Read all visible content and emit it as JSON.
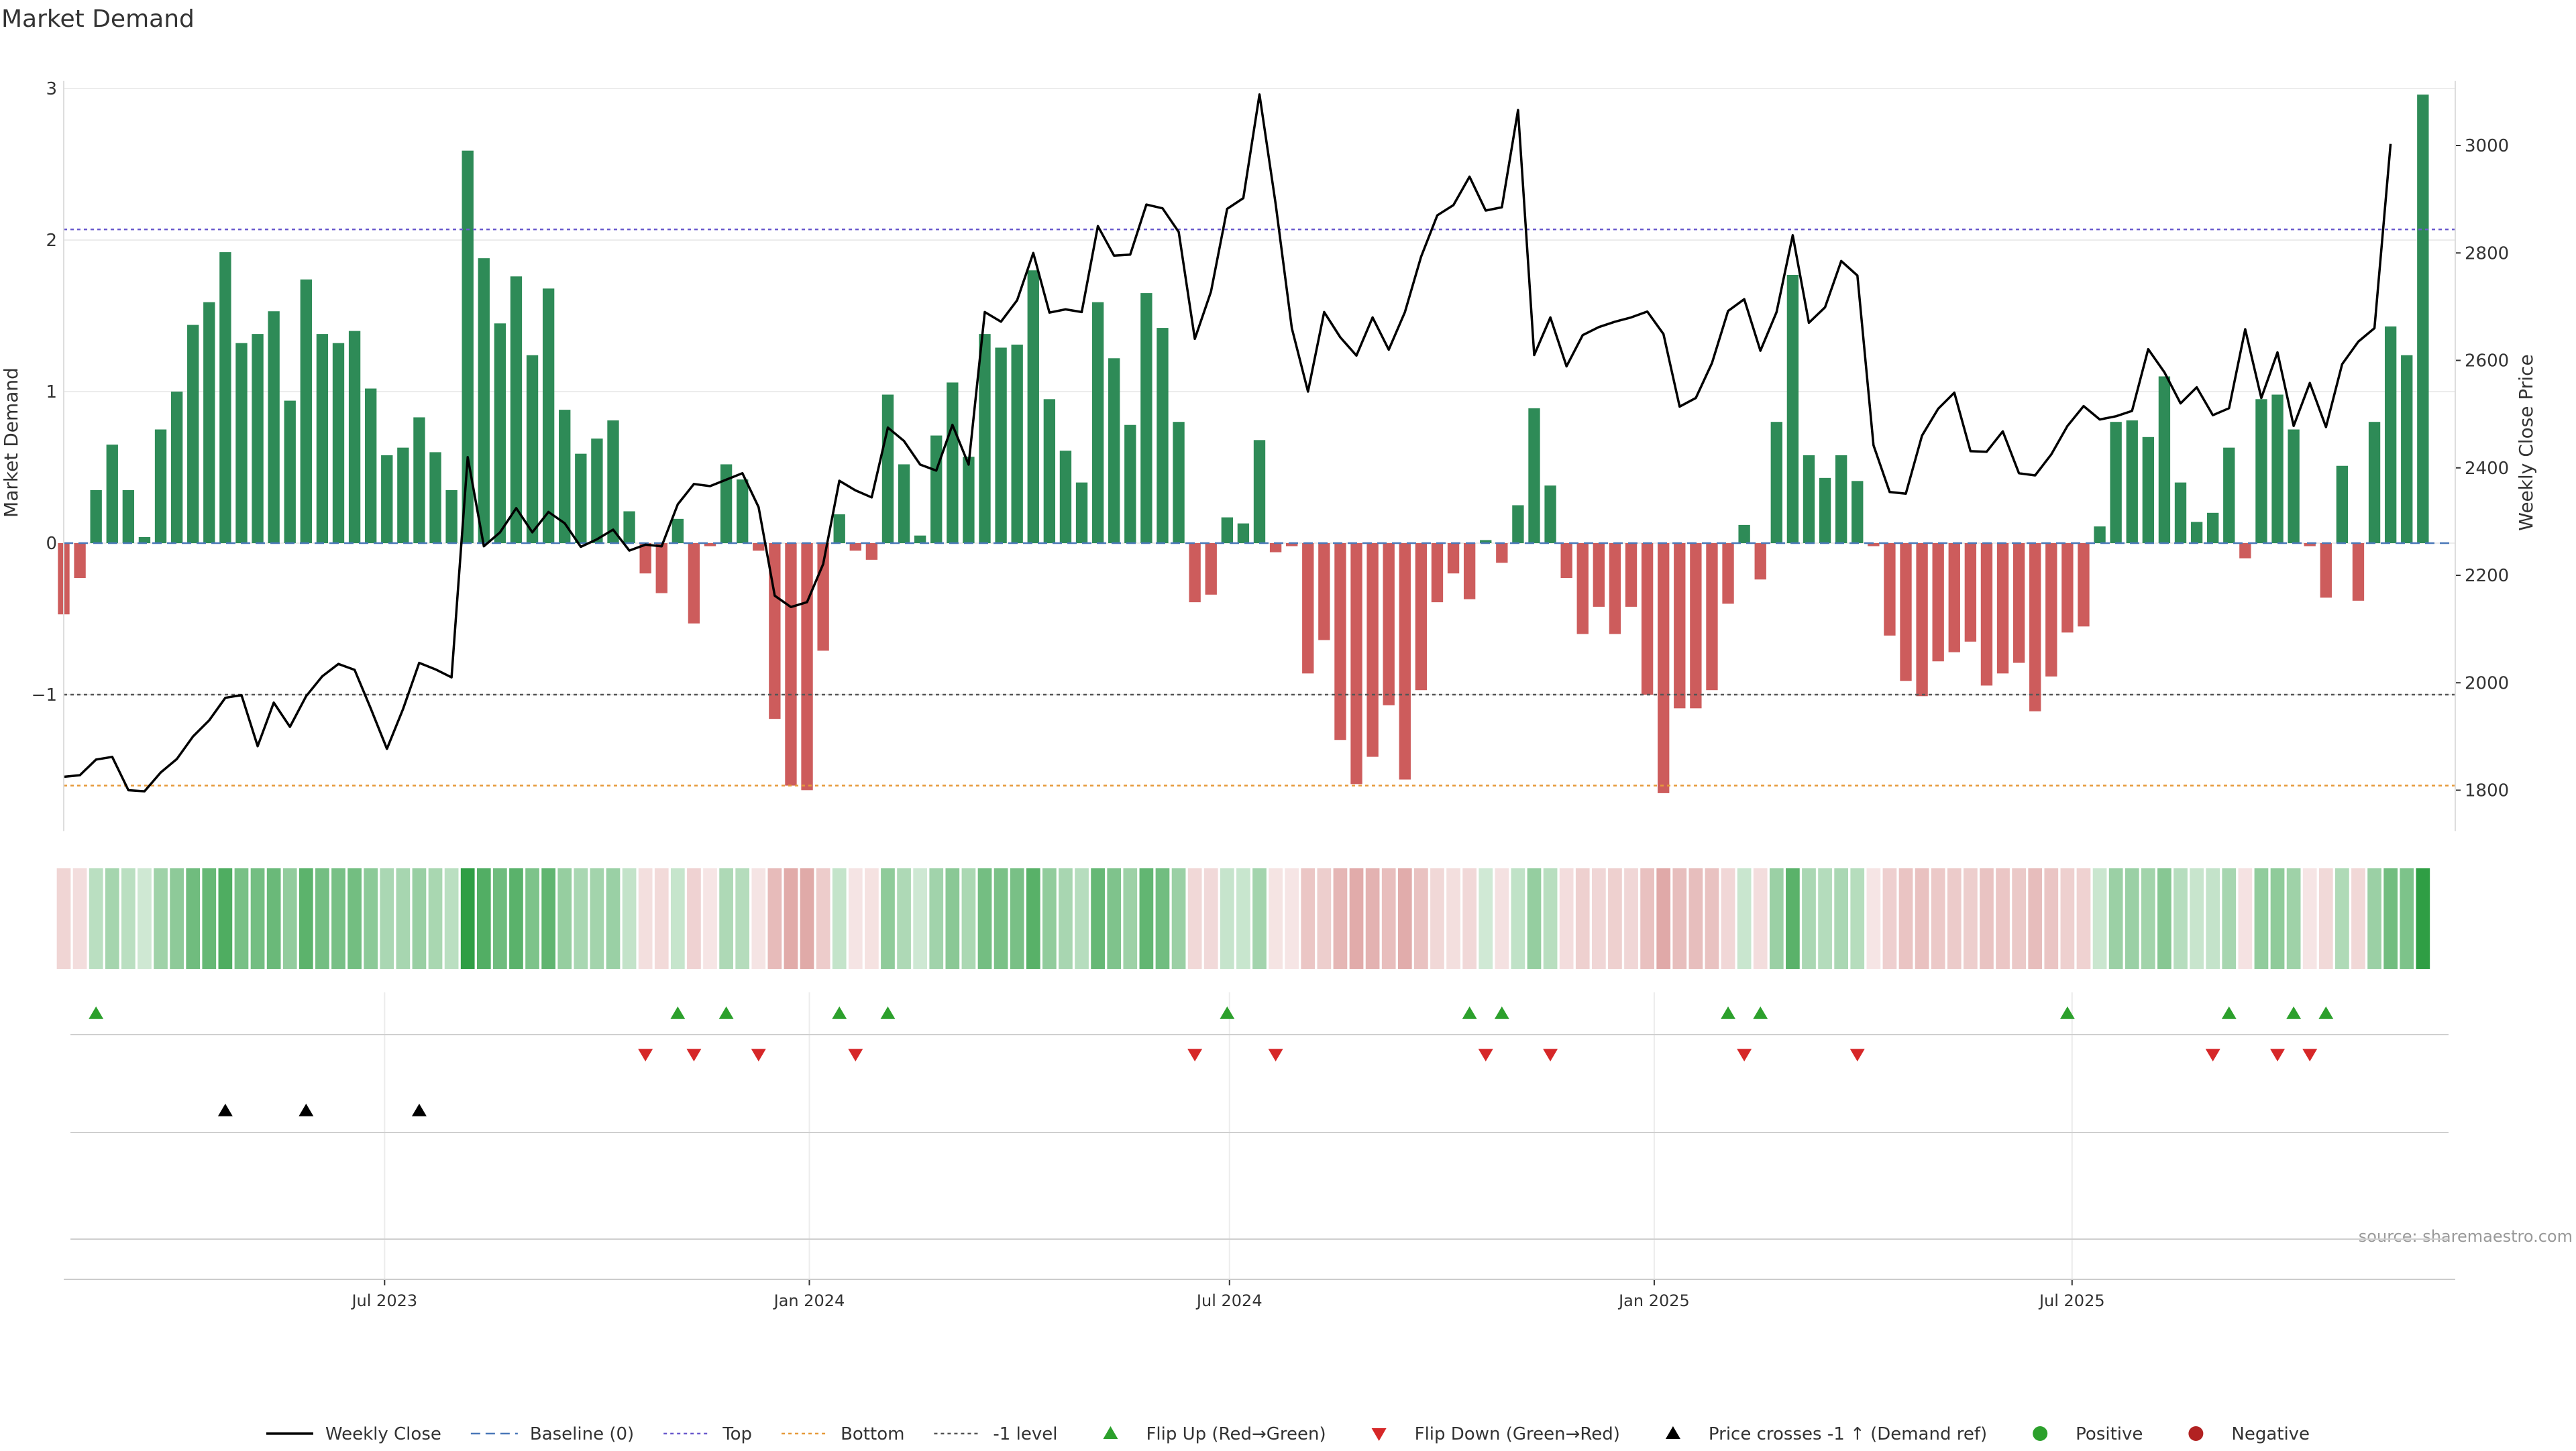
{
  "chart_data": {
    "type": "bar",
    "title": "Market Demand",
    "ylabel_left": "Market Demand",
    "ylabel_right": "Weekly Close Price",
    "y_left_ticks": [
      {
        "v": 3,
        "label": "3"
      },
      {
        "v": 2,
        "label": "2"
      },
      {
        "v": 1,
        "label": "1"
      },
      {
        "v": 0,
        "label": "0"
      },
      {
        "v": -1,
        "label": "−1"
      }
    ],
    "y_right_ticks": [
      {
        "v": 3000,
        "label": "3000"
      },
      {
        "v": 2800,
        "label": "2800"
      },
      {
        "v": 2600,
        "label": "2600"
      },
      {
        "v": 2400,
        "label": "2400"
      },
      {
        "v": 2200,
        "label": "2200"
      },
      {
        "v": 2000,
        "label": "2000"
      },
      {
        "v": 1800,
        "label": "1800"
      }
    ],
    "ylim_left": [
      -1.9,
      3.05
    ],
    "ylim_right": [
      1700,
      3120
    ],
    "x_start": "2023-02-12",
    "x_end": "2025-12-14",
    "x_ticks": [
      {
        "date": "2023-07-01",
        "label": "Jul 2023"
      },
      {
        "date": "2024-01-01",
        "label": "Jan 2024"
      },
      {
        "date": "2024-07-01",
        "label": "Jul 2024"
      },
      {
        "date": "2025-01-01",
        "label": "Jan 2025"
      },
      {
        "date": "2025-07-01",
        "label": "Jul 2025"
      }
    ],
    "first_week": "2023-02-12",
    "week_step_days": 7,
    "demand": [
      -0.47,
      -0.23,
      0.35,
      0.65,
      0.35,
      0.04,
      0.75,
      1.0,
      1.44,
      1.59,
      1.92,
      1.32,
      1.38,
      1.53,
      0.94,
      1.74,
      1.38,
      1.32,
      1.4,
      1.02,
      0.58,
      0.63,
      0.83,
      0.6,
      0.35,
      2.59,
      1.88,
      1.45,
      1.76,
      1.24,
      1.68,
      0.88,
      0.59,
      0.69,
      0.81,
      0.21,
      -0.2,
      -0.33,
      0.16,
      -0.53,
      -0.02,
      0.52,
      0.42,
      -0.05,
      -1.16,
      -1.6,
      -1.63,
      -0.71,
      0.19,
      -0.05,
      -0.11,
      0.98,
      0.52,
      0.05,
      0.71,
      1.06,
      0.57,
      1.38,
      1.29,
      1.31,
      1.8,
      0.95,
      0.61,
      0.4,
      1.59,
      1.22,
      0.78,
      1.65,
      1.42,
      0.8,
      -0.39,
      -0.34,
      0.17,
      0.13,
      0.68,
      -0.06,
      -0.02,
      -0.86,
      -0.64,
      -1.3,
      -1.59,
      -1.41,
      -1.07,
      -1.56,
      -0.97,
      -0.39,
      -0.2,
      -0.37,
      0.02,
      -0.13,
      0.25,
      0.89,
      0.38,
      -0.23,
      -0.6,
      -0.42,
      -0.6,
      -0.42,
      -1.0,
      -1.65,
      -1.09,
      -1.09,
      -0.97,
      -0.4,
      0.12,
      -0.24,
      0.8,
      1.77,
      0.58,
      0.43,
      0.58,
      0.41,
      -0.02,
      -0.61,
      -0.91,
      -1.01,
      -0.78,
      -0.72,
      -0.65,
      -0.94,
      -0.86,
      -0.79,
      -1.11,
      -0.88,
      -0.59,
      -0.55,
      0.11,
      0.8,
      0.81,
      0.7,
      1.1,
      0.4,
      0.14,
      0.2,
      0.63,
      -0.1,
      0.95,
      0.98,
      0.75,
      -0.02,
      -0.36,
      0.51,
      -0.38,
      0.8,
      1.43,
      1.24,
      2.96
    ],
    "close": [
      1825,
      1828,
      1857,
      1862,
      1800,
      1798,
      1833,
      1858,
      1900,
      1930,
      1972,
      1977,
      1882,
      1963,
      1918,
      1975,
      2012,
      2035,
      2024,
      1952,
      1877,
      1951,
      2037,
      2025,
      2010,
      2420,
      2254,
      2280,
      2325,
      2280,
      2318,
      2297,
      2253,
      2267,
      2285,
      2246,
      2257,
      2254,
      2332,
      2370,
      2366,
      2378,
      2390,
      2327,
      2162,
      2141,
      2150,
      2221,
      2376,
      2358,
      2345,
      2475,
      2450,
      2406,
      2395,
      2480,
      2406,
      2690,
      2672,
      2712,
      2800,
      2689,
      2695,
      2690,
      2850,
      2795,
      2797,
      2890,
      2883,
      2839,
      2640,
      2728,
      2882,
      2902,
      3095,
      2891,
      2660,
      2542,
      2690,
      2643,
      2609,
      2680,
      2620,
      2690,
      2793,
      2870,
      2889,
      2942,
      2879,
      2885,
      3066,
      2610,
      2680,
      2589,
      2647,
      2662,
      2672,
      2680,
      2691,
      2649,
      2514,
      2530,
      2595,
      2692,
      2714,
      2618,
      2690,
      2833,
      2670,
      2699,
      2785,
      2758,
      2442,
      2355,
      2352,
      2460,
      2510,
      2540,
      2431,
      2430,
      2468,
      2390,
      2386,
      2425,
      2478,
      2515,
      2490,
      2496,
      2506,
      2621,
      2578,
      2520,
      2550,
      2498,
      2511,
      2658,
      2530,
      2615,
      2478,
      2558,
      2476,
      2593,
      2635,
      2660,
      3003
    ],
    "levels": {
      "top": 2.07,
      "bottom": -1.6,
      "minus1": -1.0,
      "baseline": 0
    },
    "flip_up_weeks": [
      2,
      38,
      41,
      48,
      51,
      72,
      87,
      89,
      103,
      105,
      124,
      134,
      138,
      140
    ],
    "flip_down_weeks": [
      36,
      39,
      43,
      49,
      70,
      75,
      88,
      92,
      104,
      111,
      133,
      137,
      139
    ],
    "price_cross_weeks": [
      10,
      15,
      22
    ],
    "colors": {
      "positive": "#2e8b57",
      "negative": "#cd5c5c",
      "price": "#000000",
      "baseline": "#4a78b8",
      "top": "#6a5acd",
      "bottom": "#e69a3a",
      "minus1": "#555555",
      "flip_up": "#2ca02c",
      "flip_down": "#d62728",
      "cross": "#000000",
      "positive_dot": "#2ca02c",
      "negative_dot": "#b22222"
    },
    "legend": [
      {
        "kind": "line-solid",
        "label": "Weekly Close"
      },
      {
        "kind": "line-dash-blue",
        "label": "Baseline (0)"
      },
      {
        "kind": "line-dot-purple",
        "label": "Top"
      },
      {
        "kind": "line-dot-orange",
        "label": "Bottom"
      },
      {
        "kind": "line-dot-gray",
        "label": "-1 level"
      },
      {
        "kind": "tri-up-green",
        "label": "Flip Up (Red→Green)"
      },
      {
        "kind": "tri-down-red",
        "label": "Flip Down (Green→Red)"
      },
      {
        "kind": "tri-up-black",
        "label": "Price crosses -1 ↑ (Demand ref)"
      },
      {
        "kind": "dot-green",
        "label": "Positive"
      },
      {
        "kind": "dot-red",
        "label": "Negative"
      }
    ],
    "legend_position": "bottom-center",
    "grid": true
  },
  "footer": {
    "source": "source: sharemaestro.com"
  }
}
